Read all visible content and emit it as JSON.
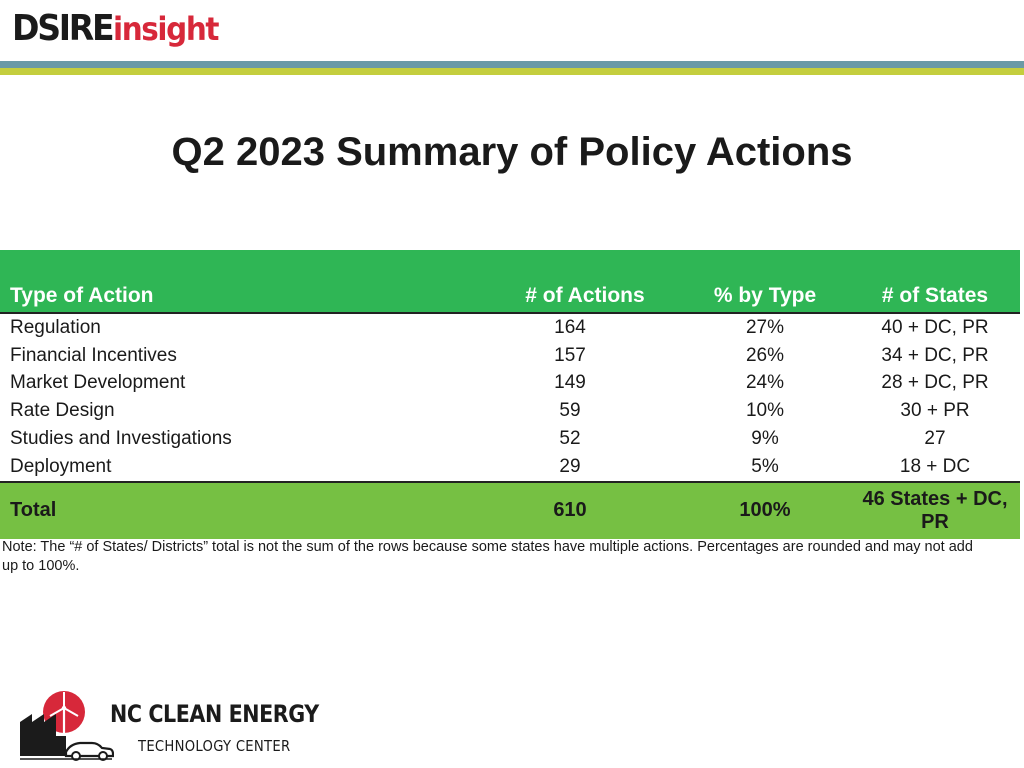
{
  "header": {
    "logo_dsire": "DSIRE",
    "logo_insight": "insight"
  },
  "title": "Q2 2023 Summary of Policy Actions",
  "table": {
    "headers": [
      "Type of Action",
      "# of Actions",
      "% by Type",
      "# of States"
    ],
    "rows": [
      [
        "Regulation",
        "164",
        "27%",
        "40 + DC, PR"
      ],
      [
        "Financial Incentives",
        "157",
        "26%",
        "34 + DC, PR"
      ],
      [
        "Market Development",
        "149",
        "24%",
        "28 + DC, PR"
      ],
      [
        "Rate Design",
        "59",
        "10%",
        "30 + PR"
      ],
      [
        "Studies and Investigations",
        "52",
        "9%",
        "27"
      ],
      [
        "Deployment",
        "29",
        "5%",
        "18 + DC"
      ]
    ],
    "total": [
      "Total",
      "610",
      "100%",
      "46 States + DC, PR"
    ]
  },
  "note": "Note: The “# of States/ Districts” total is not the sum of the rows because some states have multiple actions. Percentages are rounded and may not add up to 100%.",
  "footer": {
    "org_name": "NC CLEAN ENERGY",
    "org_subtitle": "TECHNOLOGY CENTER"
  },
  "colors": {
    "header_green": "#2fb655",
    "total_green": "#76c043",
    "logo_red": "#d7283a",
    "bar_blue": "#6a9aa6",
    "bar_green": "#c4ce3e"
  }
}
